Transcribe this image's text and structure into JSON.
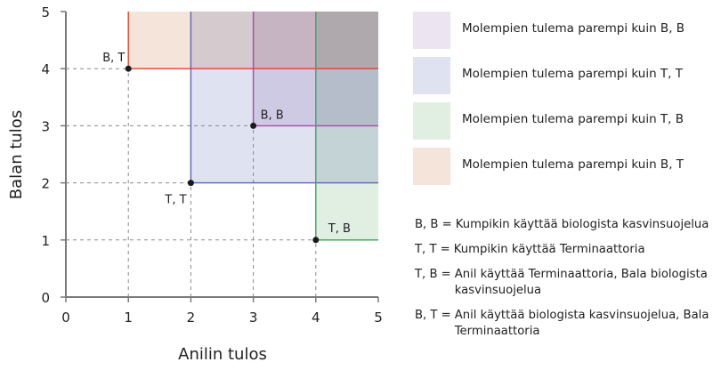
{
  "chart_data": {
    "type": "scatter",
    "title": "",
    "xlabel": "Anilin tulos",
    "ylabel": "Balan tulos",
    "xlim": [
      0,
      5
    ],
    "ylim": [
      0,
      5
    ],
    "x_ticks": [
      "0",
      "1",
      "2",
      "3",
      "4",
      "5"
    ],
    "y_ticks": [
      "0",
      "1",
      "2",
      "3",
      "4",
      "5"
    ],
    "grid": false,
    "points": [
      {
        "label": "B, T",
        "x": 1,
        "y": 4,
        "color": "#e0442b"
      },
      {
        "label": "T, T",
        "x": 2,
        "y": 2,
        "color": "#5b63b5"
      },
      {
        "label": "B, B",
        "x": 3,
        "y": 3,
        "color": "#a64ca6"
      },
      {
        "label": "T, B",
        "x": 4,
        "y": 1,
        "color": "#3fa35a"
      }
    ],
    "regions": [
      {
        "name": "Molempien tulema parempi kuin B, T",
        "from": [
          1,
          4
        ],
        "fill": "#f4e4da",
        "line": "#e0442b"
      },
      {
        "name": "Molempien tulema parempi kuin T, T",
        "from": [
          2,
          2
        ],
        "fill": "#dfe2f1",
        "line": "#5b63b5"
      },
      {
        "name": "Molempien tulema parempi kuin B, B",
        "from": [
          3,
          3
        ],
        "fill": "#ede4f1",
        "line": "#a64ca6"
      },
      {
        "name": "Molempien tulema parempi kuin T, B",
        "from": [
          4,
          1
        ],
        "fill": "#e1efe3",
        "line": "#3fa35a"
      }
    ],
    "legend_position": "right"
  },
  "legend": {
    "items": [
      {
        "label": "Molempien tulema parempi kuin B, B",
        "color": "#ede4f1"
      },
      {
        "label": "Molempien tulema parempi kuin T, T",
        "color": "#dfe2f1"
      },
      {
        "label": "Molempien tulema parempi kuin T, B",
        "color": "#e1efe3"
      },
      {
        "label": "Molempien tulema parempi kuin B, T",
        "color": "#f4e4da"
      }
    ]
  },
  "notes": [
    {
      "key": "B, B =",
      "text": "Kumpikin käyttää biologista kasvinsuojelua"
    },
    {
      "key": "T, T =",
      "text": "Kumpikin käyttää Terminaattoria"
    },
    {
      "key": "T, B =",
      "text": "Anil käyttää Terminaattoria, Bala biologista kasvinsuojelua"
    },
    {
      "key": "B, T =",
      "text": "Anil käyttää biologista kasvinsuojelua, Bala Terminaattoria"
    }
  ]
}
